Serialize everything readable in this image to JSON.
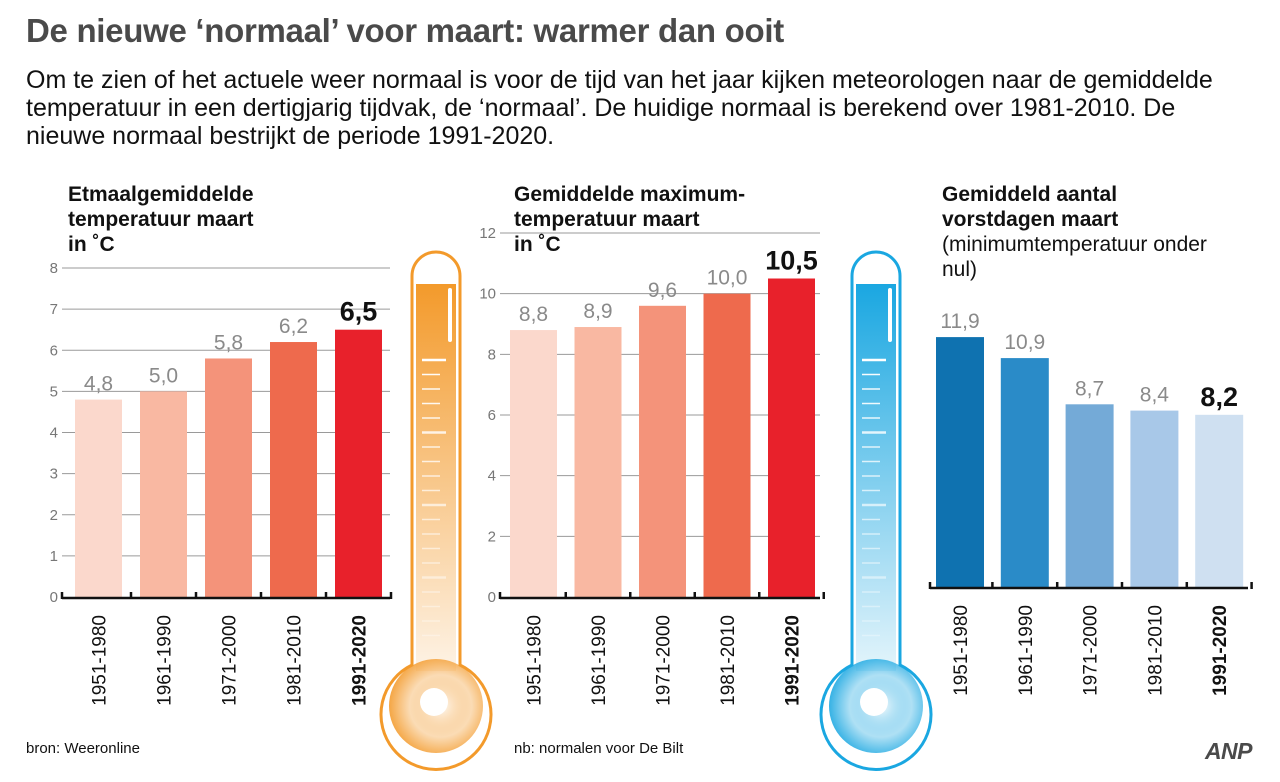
{
  "title": "De nieuwe ‘normaal’ voor maart: warmer dan ooit",
  "intro": "Om te zien of het actuele weer normaal is voor de tijd van het jaar kijken meteorologen naar de gemiddelde temperatuur in een dertigjarig tijdvak, de ‘normaal’. De huidige normaal is berekend over 1981-2010. De nieuwe normaal bestrijkt de periode 1991-2020.",
  "source": "bron:  Weeronline",
  "note": "nb: normalen voor De Bilt",
  "logo": "ANP",
  "colors": {
    "warm": [
      "#fbd8cc",
      "#f9b8a2",
      "#f4937a",
      "#ee6a4d",
      "#e8212b"
    ],
    "cold": [
      "#0f72b0",
      "#2a8bc8",
      "#74aad7",
      "#a8c8e8",
      "#cfe0f1"
    ],
    "warm_thermo": "#f39a2b",
    "cold_thermo": "#1aa7e1"
  },
  "chart_data": [
    {
      "type": "bar",
      "title": "Etmaalgemiddelde temperatuur maart",
      "unit": "in ˚C",
      "categories": [
        "1951-1980",
        "1961-1990",
        "1971-2000",
        "1981-2010",
        "1991-2020"
      ],
      "values": [
        4.8,
        5.0,
        5.8,
        6.2,
        6.5
      ],
      "value_labels": [
        "4,8",
        "5,0",
        "5,8",
        "6,2",
        "6,5"
      ],
      "ylim": [
        0,
        8
      ],
      "yticks": [
        0,
        1,
        2,
        3,
        4,
        5,
        6,
        7,
        8
      ],
      "highlight_index": 4
    },
    {
      "type": "bar",
      "title": "Gemiddelde maximum-temperatuur maart",
      "unit": "in ˚C",
      "categories": [
        "1951-1980",
        "1961-1990",
        "1971-2000",
        "1981-2010",
        "1991-2020"
      ],
      "values": [
        8.8,
        8.9,
        9.6,
        10.0,
        10.5
      ],
      "value_labels": [
        "8,8",
        "8,9",
        "9,6",
        "10,0",
        "10,5"
      ],
      "ylim": [
        0,
        12
      ],
      "yticks": [
        0,
        2,
        4,
        6,
        8,
        10,
        12
      ],
      "highlight_index": 4
    },
    {
      "type": "bar",
      "title": "Gemiddeld aantal vorstdagen maart",
      "unit": "(minimumtemperatuur onder nul)",
      "categories": [
        "1951-1980",
        "1961-1990",
        "1971-2000",
        "1981-2010",
        "1991-2020"
      ],
      "values": [
        11.9,
        10.9,
        8.7,
        8.4,
        8.2
      ],
      "value_labels": [
        "11,9",
        "10,9",
        "8,7",
        "8,4",
        "8,2"
      ],
      "ylim": [
        0,
        14
      ],
      "yticks": [],
      "highlight_index": 4
    }
  ]
}
